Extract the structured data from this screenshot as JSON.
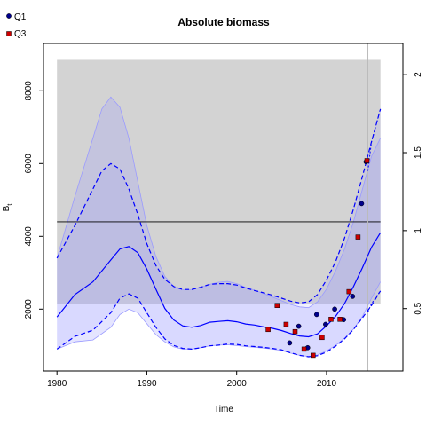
{
  "chart_data": {
    "type": "line",
    "title": "Absolute biomass",
    "xlabel": "Time",
    "ylabel": "Bt",
    "ylabel_main": "B",
    "ylabel_sub": "t",
    "xlim": [
      1978.5,
      2018.5
    ],
    "ylim": [
      300,
      9300
    ],
    "y2lim": [
      0.1,
      2.2
    ],
    "x_ticks": [
      1980,
      1990,
      2000,
      2010
    ],
    "y_ticks": [
      2000,
      4000,
      6000,
      8000
    ],
    "y2_ticks": [
      0.5,
      1,
      1.5,
      2
    ],
    "y2_tick_labels": [
      "0.5",
      "1",
      "1.5",
      "2"
    ],
    "grey_band": {
      "x": [
        1980,
        2016
      ],
      "y": [
        2150,
        8850
      ]
    },
    "hline_y": 4400,
    "vline_x": 2014.6,
    "legend": [
      {
        "label": "Q1",
        "color": "#00008b"
      },
      {
        "label": "Q3",
        "color": "#cc0000"
      }
    ],
    "series": {
      "median": [
        [
          1980,
          1780
        ],
        [
          1982,
          2400
        ],
        [
          1984,
          2750
        ],
        [
          1986,
          3350
        ],
        [
          1987,
          3650
        ],
        [
          1988,
          3720
        ],
        [
          1989,
          3550
        ],
        [
          1990,
          3100
        ],
        [
          1991,
          2550
        ],
        [
          1992,
          2020
        ],
        [
          1993,
          1700
        ],
        [
          1994,
          1540
        ],
        [
          1995,
          1500
        ],
        [
          1996,
          1550
        ],
        [
          1997,
          1640
        ],
        [
          1998,
          1660
        ],
        [
          1999,
          1680
        ],
        [
          2000,
          1650
        ],
        [
          2001,
          1590
        ],
        [
          2002,
          1560
        ],
        [
          2003,
          1510
        ],
        [
          2004,
          1470
        ],
        [
          2005,
          1410
        ],
        [
          2006,
          1330
        ],
        [
          2007,
          1260
        ],
        [
          2008,
          1240
        ],
        [
          2009,
          1320
        ],
        [
          2010,
          1540
        ],
        [
          2011,
          1800
        ],
        [
          2012,
          2150
        ],
        [
          2013,
          2620
        ],
        [
          2014,
          3140
        ],
        [
          2015,
          3700
        ],
        [
          2016,
          4100
        ]
      ],
      "ci_outer_upper": [
        [
          1980,
          3400
        ],
        [
          1982,
          5100
        ],
        [
          1984,
          6700
        ],
        [
          1985,
          7500
        ],
        [
          1986,
          7830
        ],
        [
          1987,
          7550
        ],
        [
          1988,
          6700
        ],
        [
          1989,
          5500
        ],
        [
          1990,
          4300
        ],
        [
          1991,
          3450
        ],
        [
          1992,
          2900
        ],
        [
          1993,
          2620
        ],
        [
          1994,
          2530
        ],
        [
          1995,
          2540
        ],
        [
          1996,
          2600
        ],
        [
          1997,
          2680
        ],
        [
          1998,
          2740
        ],
        [
          1999,
          2760
        ],
        [
          2000,
          2700
        ],
        [
          2001,
          2600
        ],
        [
          2002,
          2520
        ],
        [
          2003,
          2430
        ],
        [
          2004,
          2330
        ],
        [
          2005,
          2230
        ],
        [
          2006,
          2130
        ],
        [
          2007,
          2060
        ],
        [
          2008,
          2040
        ],
        [
          2009,
          2200
        ],
        [
          2010,
          2550
        ],
        [
          2011,
          3050
        ],
        [
          2012,
          3650
        ],
        [
          2013,
          4400
        ],
        [
          2014,
          5300
        ],
        [
          2015,
          6200
        ],
        [
          2016,
          6700
        ]
      ],
      "ci_outer_lower": [
        [
          1980,
          900
        ],
        [
          1982,
          1100
        ],
        [
          1984,
          1150
        ],
        [
          1986,
          1500
        ],
        [
          1987,
          1850
        ],
        [
          1988,
          2000
        ],
        [
          1989,
          1900
        ],
        [
          1990,
          1600
        ],
        [
          1991,
          1300
        ],
        [
          1992,
          1100
        ],
        [
          1993,
          960
        ],
        [
          1994,
          900
        ],
        [
          1995,
          900
        ],
        [
          1996,
          940
        ],
        [
          1997,
          990
        ],
        [
          1998,
          1010
        ],
        [
          1999,
          1020
        ],
        [
          2000,
          1000
        ],
        [
          2001,
          970
        ],
        [
          2002,
          950
        ],
        [
          2003,
          930
        ],
        [
          2004,
          900
        ],
        [
          2005,
          860
        ],
        [
          2006,
          790
        ],
        [
          2007,
          730
        ],
        [
          2008,
          700
        ],
        [
          2009,
          740
        ],
        [
          2010,
          850
        ],
        [
          2011,
          1000
        ],
        [
          2012,
          1200
        ],
        [
          2013,
          1450
        ],
        [
          2014,
          1800
        ],
        [
          2015,
          2300
        ],
        [
          2016,
          2750
        ]
      ],
      "dashed_upper": [
        [
          1980,
          3400
        ],
        [
          1982,
          4300
        ],
        [
          1984,
          5300
        ],
        [
          1985,
          5800
        ],
        [
          1986,
          6000
        ],
        [
          1987,
          5850
        ],
        [
          1988,
          5300
        ],
        [
          1989,
          4600
        ],
        [
          1990,
          3800
        ],
        [
          1991,
          3200
        ],
        [
          1992,
          2820
        ],
        [
          1993,
          2620
        ],
        [
          1994,
          2540
        ],
        [
          1995,
          2540
        ],
        [
          1996,
          2600
        ],
        [
          1997,
          2680
        ],
        [
          1998,
          2700
        ],
        [
          1999,
          2700
        ],
        [
          2000,
          2660
        ],
        [
          2001,
          2580
        ],
        [
          2002,
          2510
        ],
        [
          2003,
          2450
        ],
        [
          2004,
          2380
        ],
        [
          2005,
          2300
        ],
        [
          2006,
          2220
        ],
        [
          2007,
          2170
        ],
        [
          2008,
          2200
        ],
        [
          2009,
          2400
        ],
        [
          2010,
          2800
        ],
        [
          2011,
          3300
        ],
        [
          2012,
          3950
        ],
        [
          2013,
          4750
        ],
        [
          2014,
          5650
        ],
        [
          2015,
          6600
        ],
        [
          2016,
          7500
        ]
      ],
      "dashed_lower": [
        [
          1980,
          900
        ],
        [
          1982,
          1250
        ],
        [
          1984,
          1420
        ],
        [
          1986,
          1900
        ],
        [
          1987,
          2300
        ],
        [
          1988,
          2420
        ],
        [
          1989,
          2300
        ],
        [
          1990,
          1900
        ],
        [
          1991,
          1500
        ],
        [
          1992,
          1180
        ],
        [
          1993,
          1000
        ],
        [
          1994,
          920
        ],
        [
          1995,
          900
        ],
        [
          1996,
          940
        ],
        [
          1997,
          990
        ],
        [
          1998,
          1010
        ],
        [
          1999,
          1040
        ],
        [
          2000,
          1030
        ],
        [
          2001,
          990
        ],
        [
          2002,
          970
        ],
        [
          2003,
          950
        ],
        [
          2004,
          920
        ],
        [
          2005,
          880
        ],
        [
          2006,
          800
        ],
        [
          2007,
          730
        ],
        [
          2008,
          690
        ],
        [
          2009,
          720
        ],
        [
          2010,
          820
        ],
        [
          2011,
          980
        ],
        [
          2012,
          1180
        ],
        [
          2013,
          1440
        ],
        [
          2014,
          1760
        ],
        [
          2015,
          2100
        ],
        [
          2016,
          2500
        ]
      ],
      "forecast_solid": [
        [
          2014.6,
          3330
        ],
        [
          2015,
          3700
        ],
        [
          2016,
          4300
        ]
      ],
      "forecast_upper": [
        [
          2014.6,
          5800
        ],
        [
          2015,
          6600
        ],
        [
          2016,
          7500
        ]
      ],
      "forecast_lower": [
        [
          2014.6,
          1920
        ],
        [
          2015,
          2150
        ],
        [
          2016,
          2500
        ]
      ]
    },
    "points_q1": [
      [
        2005.9,
        1070
      ],
      [
        2006.9,
        1530
      ],
      [
        2007.9,
        940
      ],
      [
        2008.9,
        1850
      ],
      [
        2009.9,
        1580
      ],
      [
        2010.9,
        2000
      ],
      [
        2011.9,
        1710
      ],
      [
        2012.9,
        2350
      ],
      [
        2013.9,
        4900
      ],
      [
        2014.4,
        6050
      ]
    ],
    "points_q3": [
      [
        2003.5,
        1440
      ],
      [
        2004.5,
        2100
      ],
      [
        2005.5,
        1580
      ],
      [
        2006.5,
        1380
      ],
      [
        2007.5,
        900
      ],
      [
        2008.5,
        730
      ],
      [
        2009.5,
        1220
      ],
      [
        2010.5,
        1720
      ],
      [
        2011.5,
        1720
      ],
      [
        2012.5,
        2480
      ],
      [
        2013.5,
        3980
      ],
      [
        2014.5,
        6080
      ]
    ]
  }
}
